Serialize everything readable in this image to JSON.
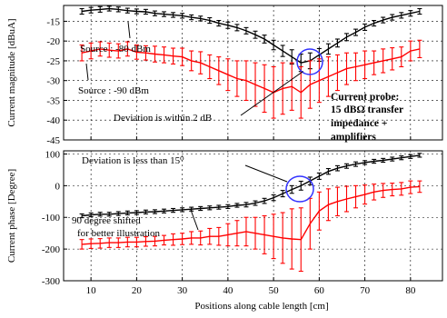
{
  "chart_data": [
    {
      "type": "line",
      "ylabel": "Current magnitude [dBuA]",
      "xlim": [
        4,
        87
      ],
      "ylim": [
        -45,
        -11
      ],
      "x_ticks": [
        10,
        20,
        30,
        40,
        50,
        60,
        70,
        80
      ],
      "y_ticks": [
        -15,
        -20,
        -25,
        -30,
        -35,
        -40,
        -45
      ],
      "grid": true,
      "series": [
        {
          "name": "Source : -80 dBm",
          "color": "#000000",
          "x": [
            8,
            10,
            12,
            14,
            16,
            18,
            20,
            22,
            24,
            26,
            28,
            30,
            32,
            34,
            36,
            38,
            40,
            42,
            44,
            46,
            48,
            50,
            52,
            54,
            56,
            58,
            60,
            62,
            64,
            66,
            68,
            70,
            72,
            74,
            76,
            78,
            80,
            82
          ],
          "y": [
            -12.5,
            -12.2,
            -12.0,
            -11.8,
            -12.0,
            -12.3,
            -12.5,
            -12.6,
            -13.0,
            -13.2,
            -13.4,
            -13.6,
            -14.0,
            -14.3,
            -14.8,
            -15.5,
            -16.0,
            -16.6,
            -17.4,
            -18.4,
            -19.5,
            -21.0,
            -22.5,
            -24.0,
            -25.5,
            -25.0,
            -23.5,
            -22.0,
            -20.5,
            -19.0,
            -17.8,
            -16.5,
            -15.5,
            -14.7,
            -14.0,
            -13.5,
            -13.0,
            -12.5
          ],
          "err": [
            0.7,
            0.7,
            0.7,
            0.6,
            0.6,
            0.6,
            0.6,
            0.6,
            0.6,
            0.6,
            0.6,
            0.6,
            0.6,
            0.6,
            0.7,
            0.7,
            0.8,
            0.8,
            0.8,
            0.9,
            1.0,
            1.2,
            1.4,
            1.8,
            2.2,
            2.0,
            1.6,
            1.3,
            1.0,
            0.9,
            0.8,
            0.8,
            0.7,
            0.7,
            0.7,
            0.7,
            0.7,
            0.7
          ]
        },
        {
          "name": "Source : -90 dBm",
          "color": "#ff0000",
          "x": [
            8,
            10,
            12,
            14,
            16,
            18,
            20,
            22,
            24,
            26,
            28,
            30,
            32,
            34,
            36,
            38,
            40,
            42,
            44,
            46,
            48,
            50,
            52,
            54,
            56,
            58,
            60,
            62,
            64,
            66,
            68,
            70,
            72,
            74,
            76,
            78,
            80,
            82
          ],
          "y": [
            -23.0,
            -22.5,
            -22.0,
            -22.3,
            -22.5,
            -22.0,
            -22.8,
            -23.0,
            -23.3,
            -23.5,
            -23.8,
            -24.0,
            -25.0,
            -25.5,
            -26.5,
            -27.5,
            -28.5,
            -29.5,
            -30.0,
            -31.0,
            -32.0,
            -33.0,
            -32.0,
            -31.5,
            -33.0,
            -31.0,
            -30.0,
            -29.0,
            -28.0,
            -27.0,
            -26.5,
            -26.0,
            -25.5,
            -25.0,
            -24.5,
            -24.0,
            -22.5,
            -22.0
          ],
          "err": [
            2.0,
            2.0,
            1.8,
            1.8,
            1.8,
            1.8,
            1.8,
            1.8,
            2.0,
            2.0,
            2.0,
            2.2,
            2.5,
            2.8,
            3.0,
            3.5,
            4.0,
            4.5,
            5.0,
            5.5,
            6.0,
            6.5,
            6.5,
            6.0,
            6.5,
            6.0,
            5.5,
            5.0,
            4.5,
            4.0,
            3.5,
            3.5,
            3.0,
            3.0,
            2.8,
            2.5,
            2.5,
            2.2
          ]
        }
      ],
      "annotations": [
        {
          "text": "Source : -80 dBm"
        },
        {
          "text": "Source : -90 dBm"
        },
        {
          "text": "Deviation is within 2 dB"
        },
        {
          "text": "Current probe:"
        },
        {
          "text": "15 dBΩ transfer"
        },
        {
          "text": "impedance +"
        },
        {
          "text": "amplifiers"
        }
      ]
    },
    {
      "type": "line",
      "xlabel": "Positions along cable length [cm]",
      "ylabel": "Current phase [Degree]",
      "xlim": [
        4,
        87
      ],
      "ylim": [
        -300,
        110
      ],
      "x_ticks": [
        10,
        20,
        30,
        40,
        50,
        60,
        70,
        80
      ],
      "y_ticks": [
        100,
        0,
        -100,
        -200,
        -300
      ],
      "grid": true,
      "series": [
        {
          "name": "black",
          "color": "#000000",
          "x": [
            8,
            10,
            12,
            14,
            16,
            18,
            20,
            22,
            24,
            26,
            28,
            30,
            32,
            34,
            36,
            38,
            40,
            42,
            44,
            46,
            48,
            50,
            52,
            54,
            56,
            58,
            60,
            62,
            64,
            66,
            68,
            70,
            72,
            74,
            76,
            78,
            80,
            82
          ],
          "y": [
            -95,
            -92,
            -90,
            -90,
            -88,
            -86,
            -85,
            -83,
            -82,
            -80,
            -78,
            -76,
            -74,
            -72,
            -70,
            -68,
            -66,
            -62,
            -60,
            -55,
            -48,
            -38,
            -25,
            -12,
            0,
            15,
            30,
            45,
            55,
            62,
            68,
            73,
            77,
            80,
            84,
            88,
            92,
            96
          ],
          "err": [
            6,
            6,
            6,
            6,
            6,
            6,
            6,
            6,
            6,
            6,
            6,
            6,
            6,
            6,
            6,
            6,
            6,
            6,
            7,
            7,
            8,
            9,
            10,
            12,
            14,
            12,
            10,
            9,
            8,
            7,
            7,
            6,
            6,
            6,
            6,
            6,
            6,
            6
          ]
        },
        {
          "name": "red",
          "color": "#ff0000",
          "x": [
            8,
            10,
            12,
            14,
            16,
            18,
            20,
            22,
            24,
            26,
            28,
            30,
            32,
            34,
            36,
            38,
            40,
            42,
            44,
            46,
            48,
            50,
            52,
            54,
            56,
            58,
            60,
            62,
            64,
            66,
            68,
            70,
            72,
            74,
            76,
            78,
            80,
            82
          ],
          "y": [
            -185,
            -183,
            -182,
            -180,
            -180,
            -178,
            -178,
            -176,
            -175,
            -172,
            -170,
            -168,
            -165,
            -165,
            -160,
            -160,
            -155,
            -150,
            -145,
            -150,
            -155,
            -160,
            -165,
            -168,
            -170,
            -120,
            -80,
            -60,
            -50,
            -42,
            -35,
            -28,
            -20,
            -15,
            -12,
            -10,
            -5,
            -3
          ],
          "err": [
            15,
            15,
            15,
            15,
            15,
            15,
            15,
            15,
            15,
            15,
            18,
            18,
            20,
            22,
            25,
            28,
            35,
            40,
            45,
            50,
            60,
            70,
            80,
            95,
            100,
            80,
            60,
            50,
            45,
            40,
            35,
            30,
            25,
            22,
            20,
            20,
            20,
            18
          ]
        }
      ],
      "annotations": [
        {
          "text": "Deviation is less than 15⁰"
        },
        {
          "text": "90 degree shifted"
        },
        {
          "text": "for better illustration"
        }
      ]
    }
  ]
}
